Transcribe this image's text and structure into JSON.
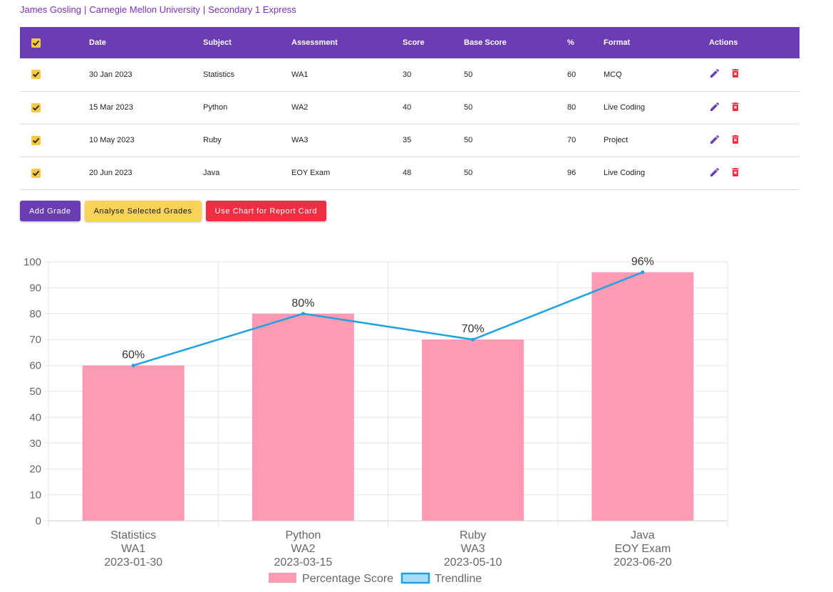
{
  "header": {
    "name": "James Gosling",
    "school": "Carnegie Mellon University",
    "class": "Secondary 1 Express",
    "separator": "|"
  },
  "table": {
    "columns": [
      "Date",
      "Subject",
      "Assessment",
      "Score",
      "Base Score",
      "%",
      "Format",
      "Actions"
    ],
    "rows": [
      {
        "date": "30 Jan 2023",
        "subject": "Statistics",
        "assessment": "WA1",
        "score": "30",
        "base": "50",
        "pct": "60",
        "format": "MCQ",
        "checked": true
      },
      {
        "date": "15 Mar 2023",
        "subject": "Python",
        "assessment": "WA2",
        "score": "40",
        "base": "50",
        "pct": "80",
        "format": "Live Coding",
        "checked": true
      },
      {
        "date": "10 May 2023",
        "subject": "Ruby",
        "assessment": "WA3",
        "score": "35",
        "base": "50",
        "pct": "70",
        "format": "Project",
        "checked": true
      },
      {
        "date": "20 Jun 2023",
        "subject": "Java",
        "assessment": "EOY Exam",
        "score": "48",
        "base": "50",
        "pct": "96",
        "format": "Live Coding",
        "checked": true
      }
    ]
  },
  "buttons": {
    "add": "Add Grade",
    "analyse": "Analyse Selected Grades",
    "report": "Use Chart for Report Card"
  },
  "icons": {
    "checkbox": "checkbox-checked-icon",
    "edit": "pencil-icon",
    "delete": "trash-icon"
  },
  "colors": {
    "primary": "#6a3db3",
    "accent": "#f7c843",
    "danger": "#ee2e42",
    "bar": "#ff9ab4",
    "trend": "#1fa3e0"
  },
  "chart_data": {
    "type": "bar",
    "categories": [
      [
        "Statistics",
        "WA1",
        "2023-01-30"
      ],
      [
        "Python",
        "WA2",
        "2023-03-15"
      ],
      [
        "Ruby",
        "WA3",
        "2023-05-10"
      ],
      [
        "Java",
        "EOY Exam",
        "2023-06-20"
      ]
    ],
    "series": [
      {
        "name": "Percentage Score",
        "type": "bar",
        "values": [
          60,
          80,
          70,
          96
        ]
      },
      {
        "name": "Trendline",
        "type": "line",
        "values": [
          60,
          80,
          70,
          96
        ]
      }
    ],
    "data_labels": [
      "60%",
      "80%",
      "70%",
      "96%"
    ],
    "ylim": [
      0,
      100
    ],
    "yticks": [
      0,
      10,
      20,
      30,
      40,
      50,
      60,
      70,
      80,
      90,
      100
    ],
    "grid": true,
    "legend": "bottom"
  }
}
